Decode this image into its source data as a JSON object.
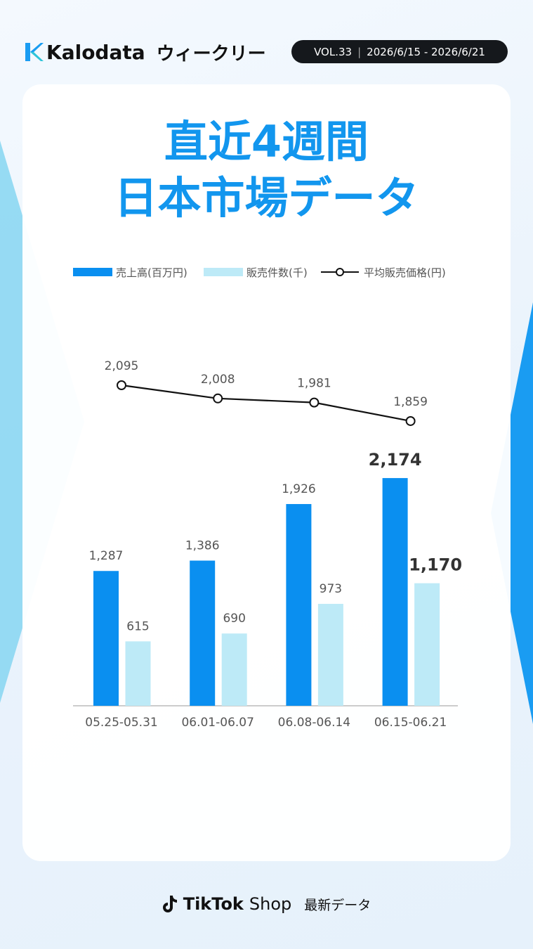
{
  "header": {
    "brand": "Kalodata",
    "series_name": "ウィークリー",
    "volume": "VOL.33",
    "date_range": "2026/6/15 - 2026/6/21"
  },
  "chart_data": {
    "type": "bar_line",
    "title": [
      "直近4週間",
      "日本市場データ"
    ],
    "categories": [
      "05.25-05.31",
      "06.01-06.07",
      "06.08-06.14",
      "06.15-06.21"
    ],
    "series": [
      {
        "name": "売上高(百万円)",
        "type": "bar",
        "color": "#0a8ff0",
        "values": [
          1287,
          1386,
          1926,
          2174
        ],
        "value_labels": [
          "1,287",
          "1,386",
          "1,926",
          "2,174"
        ]
      },
      {
        "name": "販売件数(千)",
        "type": "bar",
        "color": "#bdeaf7",
        "values": [
          615,
          690,
          973,
          1170
        ],
        "value_labels": [
          "615",
          "690",
          "973",
          "1,170"
        ]
      },
      {
        "name": "平均販売価格(円)",
        "type": "line",
        "color": "#111111",
        "values": [
          2095,
          2008,
          1981,
          1859
        ],
        "value_labels": [
          "2,095",
          "2,008",
          "1,981",
          "1,859"
        ]
      }
    ]
  },
  "footer": {
    "brand": "TikTok",
    "product": "Shop",
    "note": "最新データ"
  }
}
